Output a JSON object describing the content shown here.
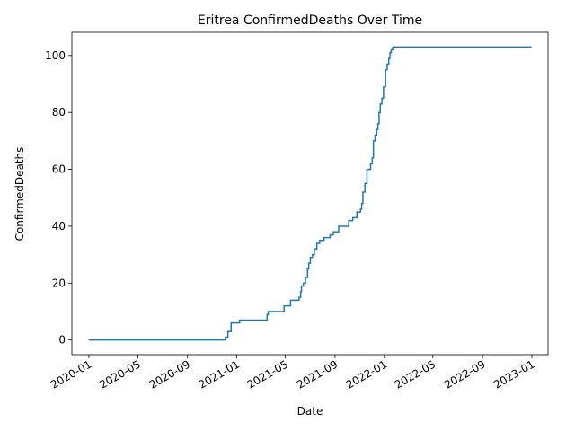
{
  "chart_data": {
    "type": "line",
    "title": "Eritrea  ConfirmedDeaths Over Time",
    "xlabel": "Date",
    "ylabel": "ConfirmedDeaths",
    "xlim": [
      "2019-11-20",
      "2023-02-10"
    ],
    "ylim": [
      -5.15,
      108.15
    ],
    "x_ticks": [
      "2020-01",
      "2020-05",
      "2020-09",
      "2021-01",
      "2021-05",
      "2021-09",
      "2022-01",
      "2022-05",
      "2022-09",
      "2023-01"
    ],
    "y_ticks": [
      0,
      20,
      40,
      60,
      80,
      100
    ],
    "grid": false,
    "legend": "none",
    "colors": {
      "line": "#1f77b4"
    },
    "series": [
      {
        "x": [
          "2020-01-01",
          "2020-12-01",
          "2020-12-04",
          "2020-12-10",
          "2020-12-14",
          "2020-12-18",
          "2020-12-28",
          "2021-01-08",
          "2021-01-12",
          "2021-02-01",
          "2021-03-01",
          "2021-03-17",
          "2021-03-20",
          "2021-03-25",
          "2021-04-28",
          "2021-05-05",
          "2021-05-14",
          "2021-06-01",
          "2021-06-04",
          "2021-06-08",
          "2021-06-10",
          "2021-06-15",
          "2021-06-20",
          "2021-06-25",
          "2021-06-28",
          "2021-07-02",
          "2021-07-07",
          "2021-07-12",
          "2021-07-18",
          "2021-07-25",
          "2021-08-05",
          "2021-08-20",
          "2021-08-28",
          "2021-09-10",
          "2021-10-05",
          "2021-10-15",
          "2021-10-25",
          "2021-10-31",
          "2021-11-03",
          "2021-11-06",
          "2021-11-09",
          "2021-11-14",
          "2021-11-19",
          "2021-11-24",
          "2021-11-28",
          "2021-12-02",
          "2021-12-05",
          "2021-12-09",
          "2021-12-13",
          "2021-12-16",
          "2021-12-19",
          "2021-12-22",
          "2021-12-26",
          "2021-12-30",
          "2022-01-04",
          "2022-01-08",
          "2022-01-12",
          "2022-01-15",
          "2022-01-18",
          "2022-01-22",
          "2022-01-26",
          "2022-01-30",
          "2022-02-03",
          "2022-02-07",
          "2022-02-11",
          "2022-12-31"
        ],
        "y": [
          0,
          0,
          1,
          3,
          3,
          6,
          6,
          7,
          7,
          7,
          7,
          9,
          10,
          10,
          12,
          12,
          14,
          14,
          15,
          17,
          19,
          20,
          22,
          25,
          27,
          29,
          30,
          32,
          34,
          35,
          36,
          37,
          38,
          40,
          42,
          43,
          45,
          45,
          46,
          48,
          52,
          55,
          60,
          60,
          62,
          64,
          70,
          72,
          74,
          76,
          80,
          83,
          85,
          89,
          95,
          97,
          99,
          101,
          102,
          103,
          103,
          103,
          103,
          103,
          103,
          103
        ]
      }
    ]
  }
}
